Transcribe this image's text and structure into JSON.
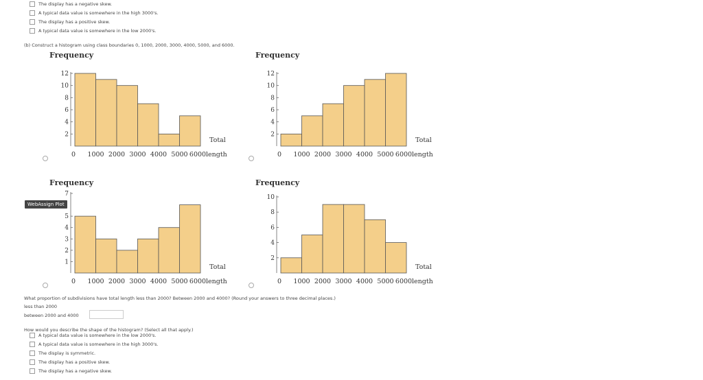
{
  "top_checkboxes": [
    "The display has a negative skew.",
    "A typical data value is somewhere in the high 3000's.",
    "The display has a positive skew.",
    "A typical data value is somewhere in the low 2000's."
  ],
  "part_b_prompt": "(b) Construct a histogram using class boundaries 0, 1000, 2000, 3000, 4000, 5000, and 6000.",
  "tooltip": "WebAssign Plot",
  "chart_data": [
    {
      "type": "bar",
      "title": "Frequency",
      "xlabel": "length",
      "total_label": "Total",
      "categories": [
        "0-1000",
        "1000-2000",
        "2000-3000",
        "3000-4000",
        "4000-5000",
        "5000-6000"
      ],
      "values": [
        12,
        11,
        10,
        7,
        2,
        5
      ],
      "ylim": [
        0,
        12
      ],
      "yticks": [
        "2",
        "4",
        "6",
        "8",
        "10",
        "12"
      ],
      "xticks": [
        "0",
        "1000",
        "2000",
        "3000",
        "4000",
        "5000",
        "6000"
      ]
    },
    {
      "type": "bar",
      "title": "Frequency",
      "xlabel": "length",
      "total_label": "Total",
      "categories": [
        "0-1000",
        "1000-2000",
        "2000-3000",
        "3000-4000",
        "4000-5000",
        "5000-6000"
      ],
      "values": [
        2,
        5,
        7,
        10,
        11,
        12
      ],
      "ylim": [
        0,
        12
      ],
      "yticks": [
        "2",
        "4",
        "6",
        "8",
        "10",
        "12"
      ],
      "xticks": [
        "0",
        "1000",
        "2000",
        "3000",
        "4000",
        "5000",
        "6000"
      ]
    },
    {
      "type": "bar",
      "title": "Frequency",
      "xlabel": "length",
      "total_label": "Total",
      "categories": [
        "0-1000",
        "1000-2000",
        "2000-3000",
        "3000-4000",
        "4000-5000",
        "5000-6000"
      ],
      "values": [
        5,
        3,
        2,
        3,
        4,
        6
      ],
      "ylim": [
        0,
        7
      ],
      "yticks": [
        "1",
        "2",
        "3",
        "4",
        "5",
        "7"
      ],
      "xticks": [
        "0",
        "1000",
        "2000",
        "3000",
        "4000",
        "5000",
        "6000"
      ]
    },
    {
      "type": "bar",
      "title": "Frequency",
      "xlabel": "length",
      "total_label": "Total",
      "categories": [
        "0-1000",
        "1000-2000",
        "2000-3000",
        "3000-4000",
        "4000-5000",
        "5000-6000"
      ],
      "values": [
        2,
        5,
        9,
        9,
        7,
        4
      ],
      "ylim": [
        0,
        10
      ],
      "yticks": [
        "2",
        "4",
        "6",
        "8",
        "10"
      ],
      "xticks": [
        "0",
        "1000",
        "2000",
        "3000",
        "4000",
        "5000",
        "6000"
      ]
    }
  ],
  "proportion_question": "What proportion of subdivisions have total length less than 2000? Between 2000 and 4000? (Round your answers to three decimal places.)",
  "inputs": [
    {
      "label": "less than 2000",
      "value": ""
    },
    {
      "label": "between 2000 and 4000",
      "value": ""
    }
  ],
  "shape_question": "How would you describe the shape of the histogram? (Select all that apply.)",
  "bottom_checkboxes": [
    "A typical data value is somewhere in the low 2000's.",
    "A typical data value is somewhere in the high 3000's.",
    "The display is symmetric.",
    "The display has a positive skew.",
    "The display has a negative skew."
  ],
  "colors": {
    "bar_fill": "#f4cf8a",
    "bar_stroke": "#555555"
  }
}
